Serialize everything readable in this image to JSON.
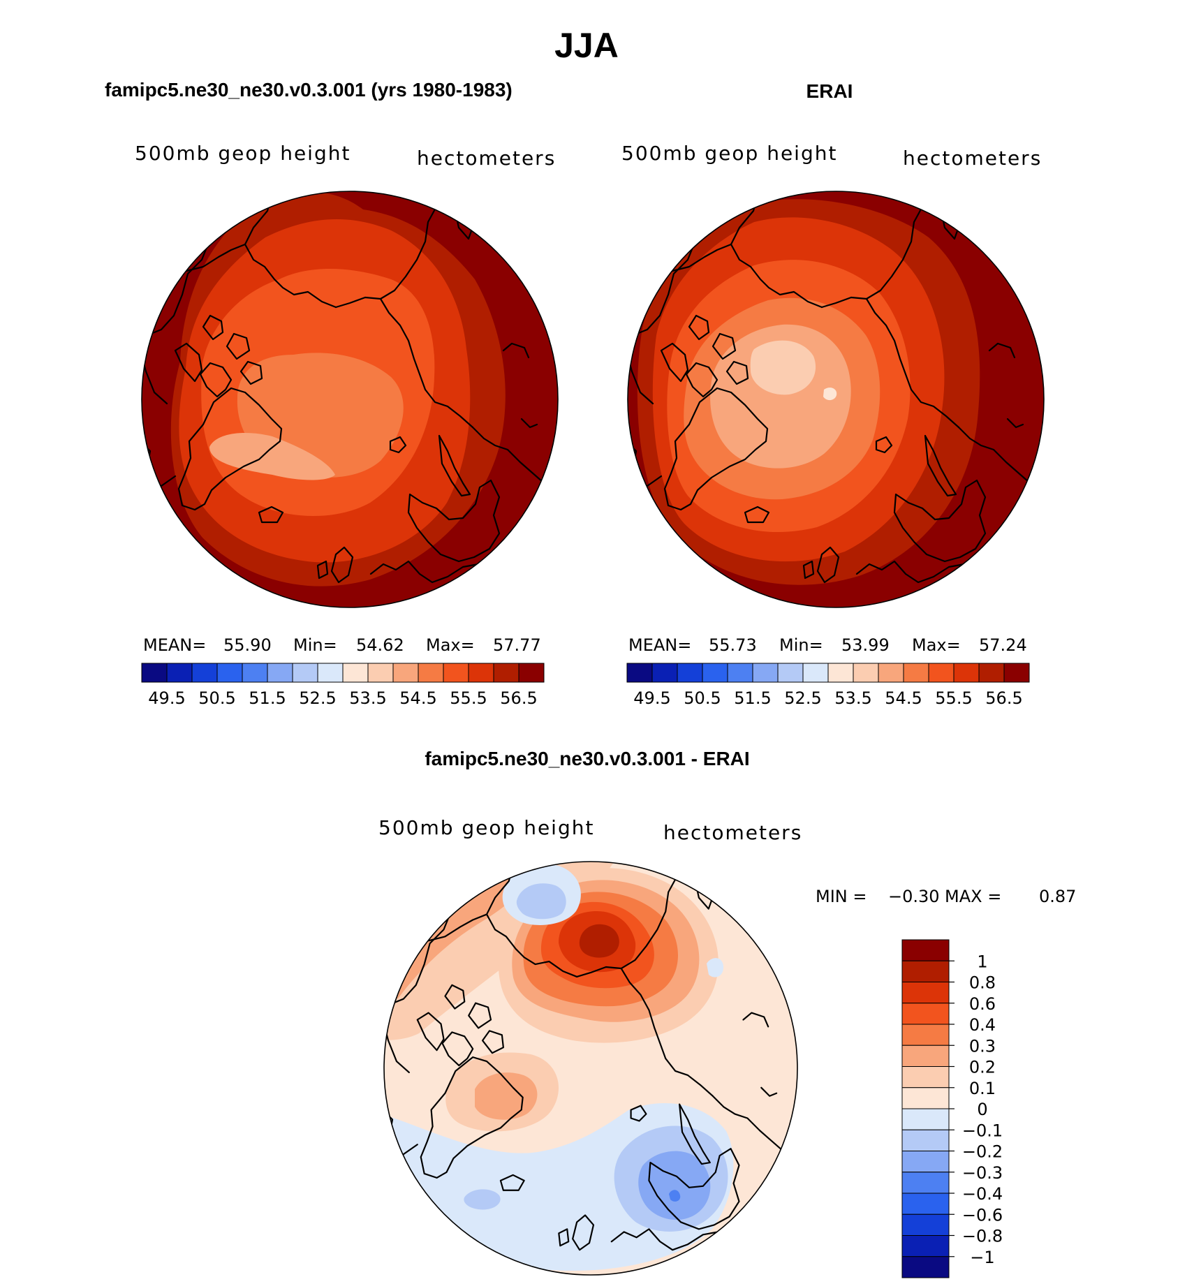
{
  "figure": {
    "season_title": "JJA",
    "panel_left_title": "famipc5.ne30_ne30.v0.3.001 (yrs 1980-1983)",
    "panel_right_title": "ERAI",
    "panel_diff_title": "famipc5.ne30_ne30.v0.3.001 - ERAI"
  },
  "chart_data": [
    {
      "type": "heatmap",
      "projection": "polar-stereographic north",
      "title": "famipc5.ne30_ne30.v0.3.001 (yrs 1980-1983)",
      "variable_label": "500mb geop height",
      "units_label": "hectometers",
      "stats": {
        "mean_label": "MEAN=",
        "mean": "55.90",
        "min_label": "Min=",
        "min": "54.62",
        "max_label": "Max=",
        "max": "57.77"
      },
      "levels": [
        49.5,
        50.5,
        51.5,
        52.5,
        53.5,
        54.5,
        55.5,
        56.5
      ],
      "tick_labels": [
        "49.5",
        "50.5",
        "51.5",
        "52.5",
        "53.5",
        "54.5",
        "55.5",
        "56.5"
      ],
      "colors": [
        "#0a0a82",
        "#0a20b4",
        "#1440d8",
        "#2a62ee",
        "#4d80f2",
        "#86a8f4",
        "#b4caf6",
        "#dae8fa",
        "#fde6d6",
        "#fbcdb1",
        "#f8a67c",
        "#f57b44",
        "#f2541e",
        "#dc3408",
        "#b01e00",
        "#8a0000"
      ],
      "field_bands": [
        56.75,
        56.25,
        55.75,
        55.25,
        54.75
      ]
    },
    {
      "type": "heatmap",
      "projection": "polar-stereographic north",
      "title": "ERAI",
      "variable_label": "500mb geop height",
      "units_label": "hectometers",
      "stats": {
        "mean_label": "MEAN=",
        "mean": "55.73",
        "min_label": "Min=",
        "min": "53.99",
        "max_label": "Max=",
        "max": "57.24"
      },
      "levels": [
        49.5,
        50.5,
        51.5,
        52.5,
        53.5,
        54.5,
        55.5,
        56.5
      ],
      "tick_labels": [
        "49.5",
        "50.5",
        "51.5",
        "52.5",
        "53.5",
        "54.5",
        "55.5",
        "56.5"
      ],
      "colors": [
        "#0a0a82",
        "#0a20b4",
        "#1440d8",
        "#2a62ee",
        "#4d80f2",
        "#86a8f4",
        "#b4caf6",
        "#dae8fa",
        "#fde6d6",
        "#fbcdb1",
        "#f8a67c",
        "#f57b44",
        "#f2541e",
        "#dc3408",
        "#b01e00",
        "#8a0000"
      ],
      "field_bands": [
        56.75,
        56.25,
        55.75,
        55.25,
        54.75,
        54.25,
        53.75
      ]
    },
    {
      "type": "heatmap",
      "projection": "polar-stereographic north",
      "title": "famipc5.ne30_ne30.v0.3.001 - ERAI",
      "variable_label": "500mb geop height",
      "units_label": "hectometers",
      "stats": {
        "min_label": "MIN =",
        "min": "−0.30",
        "max_label": "MAX =",
        "max": "0.87"
      },
      "levels": [
        1,
        0.8,
        0.6,
        0.4,
        0.3,
        0.2,
        0.1,
        0,
        -0.1,
        -0.2,
        -0.3,
        -0.4,
        -0.6,
        -0.8,
        -1
      ],
      "tick_labels": [
        "1",
        "0.8",
        "0.6",
        "0.4",
        "0.3",
        "0.2",
        "0.1",
        "0",
        "−0.1",
        "−0.2",
        "−0.3",
        "−0.4",
        "−0.6",
        "−0.8",
        "−1"
      ],
      "colors": [
        "#8a0000",
        "#b01e00",
        "#dc3408",
        "#f2541e",
        "#f57b44",
        "#f8a67c",
        "#fbcdb1",
        "#fde6d6",
        "#dae8fa",
        "#b4caf6",
        "#86a8f4",
        "#4d80f2",
        "#2a62ee",
        "#1440d8",
        "#0a20b4",
        "#0a0a82"
      ]
    }
  ]
}
